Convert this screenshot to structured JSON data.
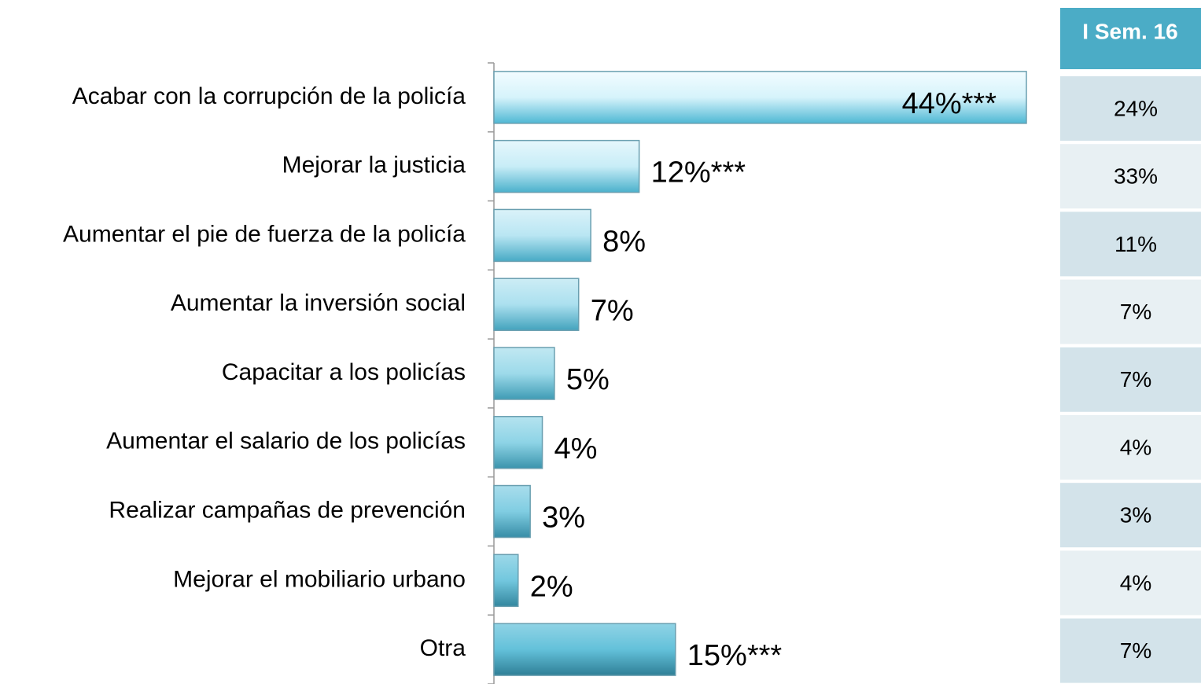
{
  "chart_data": {
    "type": "bar",
    "orientation": "horizontal",
    "categories": [
      "Acabar con la corrupción de la policía",
      "Mejorar la justicia",
      "Aumentar el pie de fuerza de la policía",
      "Aumentar la inversión social",
      "Capacitar a los policías",
      "Aumentar el salario de los policías",
      "Realizar campañas de prevención",
      "Mejorar el mobiliario urbano",
      "Otra"
    ],
    "values": [
      44,
      12,
      8,
      7,
      5,
      4,
      3,
      2,
      15
    ],
    "value_labels": [
      "44%***",
      "12%***",
      "8%",
      "7%",
      "5%",
      "4%",
      "3%",
      "2%",
      "15%***"
    ],
    "color": "#4fb8d4"
  },
  "table": {
    "header": "I Sem. 16",
    "rows": [
      "24%",
      "33%",
      "11%",
      "7%",
      "7%",
      "4%",
      "3%",
      "4%",
      "7%"
    ]
  }
}
